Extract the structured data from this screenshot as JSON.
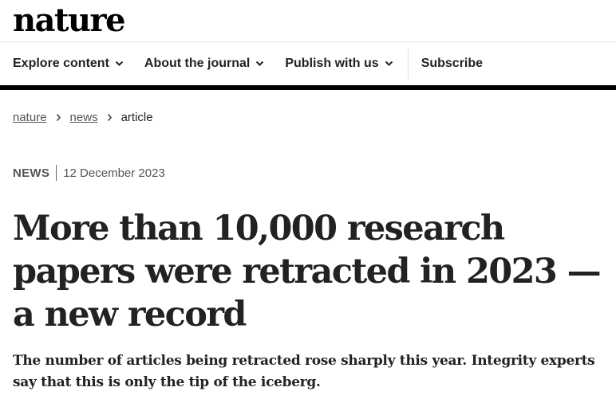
{
  "site": {
    "logo": "nature"
  },
  "nav": {
    "items": [
      {
        "label": "Explore content"
      },
      {
        "label": "About the journal"
      },
      {
        "label": "Publish with us"
      }
    ],
    "subscribe_label": "Subscribe"
  },
  "breadcrumb": {
    "items": [
      "nature",
      "news",
      "article"
    ]
  },
  "article": {
    "type": "NEWS",
    "date": "12 December 2023",
    "title": "More than 10,000 research papers were retracted in 2023 — a new record",
    "standfirst": "The number of articles being retracted rose sharply this year. Integrity experts say that this is only the tip of the iceberg."
  }
}
